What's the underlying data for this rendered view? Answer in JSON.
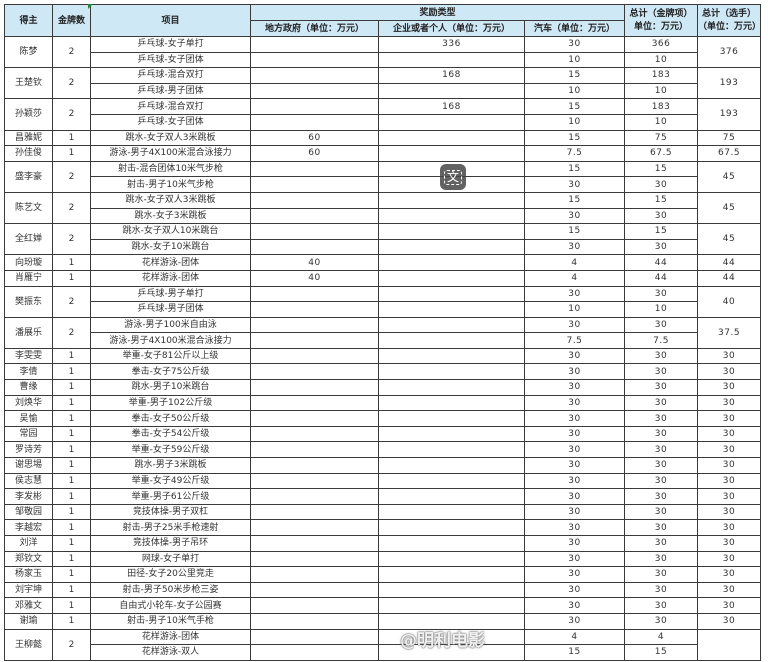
{
  "header": {
    "winner": "得主",
    "medals": "金牌数",
    "event": "项目",
    "reward_type": "奖励类型",
    "gov": "地方政府（单位：万元）",
    "corp": "企业或者个人（单位：万元）",
    "car": "汽车（单位：万元）",
    "total_event_line1": "总计（金牌项）",
    "total_event_line2": "单位：万元）",
    "total_player_line1": "总计（选手）",
    "total_player_line2": "（单位：万元）"
  },
  "rows": [
    {
      "name": "陈梦",
      "medals": "2",
      "total": "376",
      "items": [
        {
          "event": "乒乓球-女子单打",
          "gov": "",
          "corp": "336",
          "car": "30",
          "sum": "366"
        },
        {
          "event": "乒乓球-女子团体",
          "gov": "",
          "corp": "",
          "car": "10",
          "sum": "10"
        }
      ]
    },
    {
      "name": "王楚钦",
      "medals": "2",
      "total": "193",
      "items": [
        {
          "event": "乒乓球-混合双打",
          "gov": "",
          "corp": "168",
          "car": "15",
          "sum": "183"
        },
        {
          "event": "乒乓球-男子团体",
          "gov": "",
          "corp": "",
          "car": "10",
          "sum": "10"
        }
      ]
    },
    {
      "name": "孙颖莎",
      "medals": "2",
      "total": "193",
      "items": [
        {
          "event": "乒乓球-混合双打",
          "gov": "",
          "corp": "168",
          "car": "15",
          "sum": "183"
        },
        {
          "event": "乒乓球-女子团体",
          "gov": "",
          "corp": "",
          "car": "10",
          "sum": "10"
        }
      ]
    },
    {
      "name": "昌雅妮",
      "medals": "1",
      "total": "75",
      "items": [
        {
          "event": "跳水-女子双人3米跳板",
          "gov": "60",
          "corp": "",
          "car": "15",
          "sum": "75"
        }
      ]
    },
    {
      "name": "孙佳俊",
      "medals": "1",
      "total": "67.5",
      "items": [
        {
          "event": "游泳-男子4X100米混合泳接力",
          "gov": "60",
          "corp": "",
          "car": "7.5",
          "sum": "67.5"
        }
      ]
    },
    {
      "name": "盛李豪",
      "medals": "2",
      "total": "45",
      "items": [
        {
          "event": "射击-混合团体10米气步枪",
          "gov": "",
          "corp": "",
          "car": "15",
          "sum": "15"
        },
        {
          "event": "射击-男子10米气步枪",
          "gov": "",
          "corp": "",
          "car": "30",
          "sum": "30"
        }
      ]
    },
    {
      "name": "陈艺文",
      "medals": "2",
      "total": "45",
      "items": [
        {
          "event": "跳水-女子双人3米跳板",
          "gov": "",
          "corp": "",
          "car": "15",
          "sum": "15"
        },
        {
          "event": "跳水-女子3米跳板",
          "gov": "",
          "corp": "",
          "car": "30",
          "sum": "30"
        }
      ]
    },
    {
      "name": "全红婵",
      "medals": "2",
      "total": "45",
      "items": [
        {
          "event": "跳水-女子双人10米跳台",
          "gov": "",
          "corp": "",
          "car": "15",
          "sum": "15"
        },
        {
          "event": "跳水-女子10米跳台",
          "gov": "",
          "corp": "",
          "car": "30",
          "sum": "30"
        }
      ]
    },
    {
      "name": "向玢璇",
      "medals": "1",
      "total": "44",
      "items": [
        {
          "event": "花样游泳-团体",
          "gov": "40",
          "corp": "",
          "car": "4",
          "sum": "44"
        }
      ]
    },
    {
      "name": "肖雁宁",
      "medals": "1",
      "total": "44",
      "items": [
        {
          "event": "花样游泳-团体",
          "gov": "40",
          "corp": "",
          "car": "4",
          "sum": "44"
        }
      ]
    },
    {
      "name": "樊振东",
      "medals": "2",
      "total": "40",
      "items": [
        {
          "event": "乒乓球-男子单打",
          "gov": "",
          "corp": "",
          "car": "30",
          "sum": "30"
        },
        {
          "event": "乒乓球-男子团体",
          "gov": "",
          "corp": "",
          "car": "10",
          "sum": "10"
        }
      ]
    },
    {
      "name": "潘展乐",
      "medals": "2",
      "total": "37.5",
      "items": [
        {
          "event": "游泳-男子100米自由泳",
          "gov": "",
          "corp": "",
          "car": "30",
          "sum": "30"
        },
        {
          "event": "游泳-男子4X100米混合泳接力",
          "gov": "",
          "corp": "",
          "car": "7.5",
          "sum": "7.5"
        }
      ]
    },
    {
      "name": "李雯雯",
      "medals": "1",
      "total": "30",
      "items": [
        {
          "event": "举重-女子81公斤以上级",
          "gov": "",
          "corp": "",
          "car": "30",
          "sum": "30"
        }
      ]
    },
    {
      "name": "李倩",
      "medals": "1",
      "total": "30",
      "items": [
        {
          "event": "拳击-女子75公斤级",
          "gov": "",
          "corp": "",
          "car": "30",
          "sum": "30"
        }
      ]
    },
    {
      "name": "曹缘",
      "medals": "1",
      "total": "30",
      "items": [
        {
          "event": "跳水-男子10米跳台",
          "gov": "",
          "corp": "",
          "car": "30",
          "sum": "30"
        }
      ]
    },
    {
      "name": "刘焕华",
      "medals": "1",
      "total": "30",
      "items": [
        {
          "event": "举重-男子102公斤级",
          "gov": "",
          "corp": "",
          "car": "30",
          "sum": "30"
        }
      ]
    },
    {
      "name": "吴愉",
      "medals": "1",
      "total": "30",
      "items": [
        {
          "event": "拳击-女子50公斤级",
          "gov": "",
          "corp": "",
          "car": "30",
          "sum": "30"
        }
      ]
    },
    {
      "name": "常园",
      "medals": "1",
      "total": "30",
      "items": [
        {
          "event": "拳击-女子54公斤级",
          "gov": "",
          "corp": "",
          "car": "30",
          "sum": "30"
        }
      ]
    },
    {
      "name": "罗诗芳",
      "medals": "1",
      "total": "30",
      "items": [
        {
          "event": "举重-女子59公斤级",
          "gov": "",
          "corp": "",
          "car": "30",
          "sum": "30"
        }
      ]
    },
    {
      "name": "谢思埸",
      "medals": "1",
      "total": "30",
      "items": [
        {
          "event": "跳水-男子3米跳板",
          "gov": "",
          "corp": "",
          "car": "30",
          "sum": "30"
        }
      ]
    },
    {
      "name": "侯志慧",
      "medals": "1",
      "total": "30",
      "items": [
        {
          "event": "举重-女子49公斤级",
          "gov": "",
          "corp": "",
          "car": "30",
          "sum": "30"
        }
      ]
    },
    {
      "name": "李发彬",
      "medals": "1",
      "total": "30",
      "items": [
        {
          "event": "举重-男子61公斤级",
          "gov": "",
          "corp": "",
          "car": "30",
          "sum": "30"
        }
      ]
    },
    {
      "name": "邹敬园",
      "medals": "1",
      "total": "30",
      "items": [
        {
          "event": "竞技体操-男子双杠",
          "gov": "",
          "corp": "",
          "car": "30",
          "sum": "30"
        }
      ]
    },
    {
      "name": "李越宏",
      "medals": "1",
      "total": "30",
      "items": [
        {
          "event": "射击-男子25米手枪速射",
          "gov": "",
          "corp": "",
          "car": "30",
          "sum": "30"
        }
      ]
    },
    {
      "name": "刘洋",
      "medals": "1",
      "total": "30",
      "items": [
        {
          "event": "竞技体操-男子吊环",
          "gov": "",
          "corp": "",
          "car": "30",
          "sum": "30"
        }
      ]
    },
    {
      "name": "郑钦文",
      "medals": "1",
      "total": "30",
      "items": [
        {
          "event": "网球-女子单打",
          "gov": "",
          "corp": "",
          "car": "30",
          "sum": "30"
        }
      ]
    },
    {
      "name": "杨家玉",
      "medals": "1",
      "total": "30",
      "items": [
        {
          "event": "田径-女子20公里竞走",
          "gov": "",
          "corp": "",
          "car": "30",
          "sum": "30"
        }
      ]
    },
    {
      "name": "刘宇坤",
      "medals": "1",
      "total": "30",
      "items": [
        {
          "event": "射击-男子50米步枪三姿",
          "gov": "",
          "corp": "",
          "car": "30",
          "sum": "30"
        }
      ]
    },
    {
      "name": "邓雅文",
      "medals": "1",
      "total": "30",
      "items": [
        {
          "event": "自由式小轮车-女子公园赛",
          "gov": "",
          "corp": "",
          "car": "30",
          "sum": "30"
        }
      ]
    },
    {
      "name": "谢瑜",
      "medals": "1",
      "total": "30",
      "items": [
        {
          "event": "射击-男子10米气手枪",
          "gov": "",
          "corp": "",
          "car": "30",
          "sum": "30"
        }
      ]
    },
    {
      "name": "王柳懿",
      "medals": "2",
      "total": "",
      "items": [
        {
          "event": "花样游泳-团体",
          "gov": "",
          "corp": "",
          "car": "4",
          "sum": "4"
        },
        {
          "event": "花样游泳-双人",
          "gov": "",
          "corp": "",
          "car": "15",
          "sum": "15"
        }
      ]
    }
  ],
  "overlay": {
    "translate_icon": "translate-icon",
    "translate_glyph": "文",
    "watermark": "@明利电影"
  },
  "colors": {
    "header_bg": "#cfe8f6",
    "border": "#3a3a3a",
    "marker": "#1f8a3a"
  }
}
